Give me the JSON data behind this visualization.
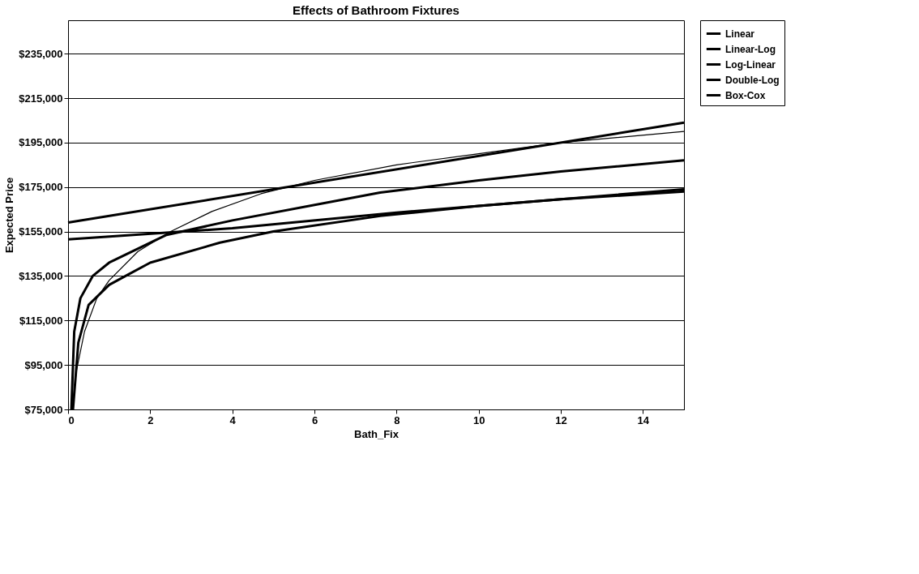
{
  "chart_data": {
    "type": "line",
    "title": "Effects of Bathroom Fixtures",
    "xlabel": "Bath_Fix",
    "ylabel": "Expected Price",
    "xlim": [
      0,
      15
    ],
    "xticks": [
      0,
      2,
      4,
      6,
      8,
      10,
      12,
      14
    ],
    "ylim": [
      75000,
      250000
    ],
    "yticks": [
      {
        "value": 75000,
        "label": "$75,000"
      },
      {
        "value": 95000,
        "label": "$95,000"
      },
      {
        "value": 115000,
        "label": "$115,000"
      },
      {
        "value": 135000,
        "label": "$135,000"
      },
      {
        "value": 155000,
        "label": "$155,000"
      },
      {
        "value": 175000,
        "label": "$175,000"
      },
      {
        "value": 195000,
        "label": "$195,000"
      },
      {
        "value": 215000,
        "label": "$215,000"
      },
      {
        "value": 235000,
        "label": "$235,000"
      }
    ],
    "grid": "y",
    "legend": "right",
    "marker": "none",
    "line_style": "solid",
    "series": [
      {
        "name": "Linear",
        "color": "#000000",
        "x": [
          0,
          15
        ],
        "values": [
          159000,
          204000
        ]
      },
      {
        "name": "Linear-Log",
        "color": "#000000",
        "x": [
          0.1,
          0.2,
          0.4,
          0.7,
          1,
          1.7,
          2.5,
          3.5,
          4.7,
          6,
          8,
          10,
          12,
          15
        ],
        "values": [
          75000,
          92000,
          110000,
          125000,
          133000,
          146000,
          155000,
          164000,
          172000,
          178000,
          185000,
          190000,
          195000,
          200000
        ]
      },
      {
        "name": "Log-Linear",
        "color": "#000000",
        "x": [
          0,
          4,
          8,
          12,
          15
        ],
        "values": [
          151500,
          156500,
          163500,
          169500,
          174000
        ]
      },
      {
        "name": "Double-Log",
        "color": "#000000",
        "x": [
          0.08,
          0.15,
          0.3,
          0.6,
          1,
          2.4,
          4,
          7.6,
          10,
          12,
          15
        ],
        "values": [
          75000,
          110000,
          125000,
          135000,
          141000,
          153500,
          160000,
          172500,
          178000,
          182000,
          187000
        ]
      },
      {
        "name": "Box-Cox",
        "color": "#000000",
        "x": [
          0.12,
          0.25,
          0.5,
          1,
          1.4,
          2,
          3.7,
          5,
          7.6,
          10,
          12,
          15
        ],
        "values": [
          75000,
          105000,
          122000,
          131000,
          135000,
          141000,
          150000,
          155000,
          162000,
          166500,
          169500,
          173000
        ]
      }
    ]
  }
}
